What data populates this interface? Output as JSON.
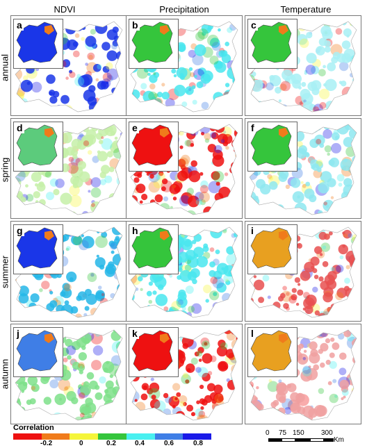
{
  "columns": [
    "NDVI",
    "Precipitation",
    "Temperature"
  ],
  "rows": [
    "annual",
    "spring",
    "summer",
    "autumn"
  ],
  "panels": [
    {
      "label": "a",
      "row": "annual",
      "variable": "NDVI",
      "dominant": "#1a36e8",
      "inset": "#1a36e8"
    },
    {
      "label": "b",
      "row": "annual",
      "variable": "Precipitation",
      "dominant": "#49e6ee",
      "inset": "#35c53c"
    },
    {
      "label": "c",
      "row": "annual",
      "variable": "Temperature",
      "dominant": "#a8f0f4",
      "inset": "#35c53c"
    },
    {
      "label": "d",
      "row": "spring",
      "variable": "NDVI",
      "dominant": "#c6f0a8",
      "inset": "#5ccb7c"
    },
    {
      "label": "e",
      "row": "spring",
      "variable": "Precipitation",
      "dominant": "#ee1111",
      "inset": "#ee1111"
    },
    {
      "label": "f",
      "row": "spring",
      "variable": "Temperature",
      "dominant": "#8ee8f0",
      "inset": "#35c53c"
    },
    {
      "label": "g",
      "row": "summer",
      "variable": "NDVI",
      "dominant": "#24b6e8",
      "inset": "#1a36e8"
    },
    {
      "label": "h",
      "row": "summer",
      "variable": "Precipitation",
      "dominant": "#49e6ee",
      "inset": "#35c53c"
    },
    {
      "label": "i",
      "row": "summer",
      "variable": "Temperature",
      "dominant": "#e85050",
      "inset": "#e8a020"
    },
    {
      "label": "j",
      "row": "autumn",
      "variable": "NDVI",
      "dominant": "#7ee08a",
      "inset": "#3f7ee6"
    },
    {
      "label": "k",
      "row": "autumn",
      "variable": "Precipitation",
      "dominant": "#ee1111",
      "inset": "#ee1111"
    },
    {
      "label": "l",
      "row": "autumn",
      "variable": "Temperature",
      "dominant": "#f0a0a0",
      "inset": "#e8a020"
    }
  ],
  "legend": {
    "title": "Correlation",
    "colors": [
      "#ee1111",
      "#f07b1b",
      "#f5f53a",
      "#35c53c",
      "#49f0f0",
      "#3f7ee6",
      "#1a1ae8"
    ],
    "ticks": [
      "-0.2",
      "0",
      "0.2",
      "0.4",
      "0.6",
      "0.8"
    ]
  },
  "scalebar": {
    "ticks": [
      "0",
      "75",
      "150",
      "300"
    ],
    "unit": "Km"
  }
}
